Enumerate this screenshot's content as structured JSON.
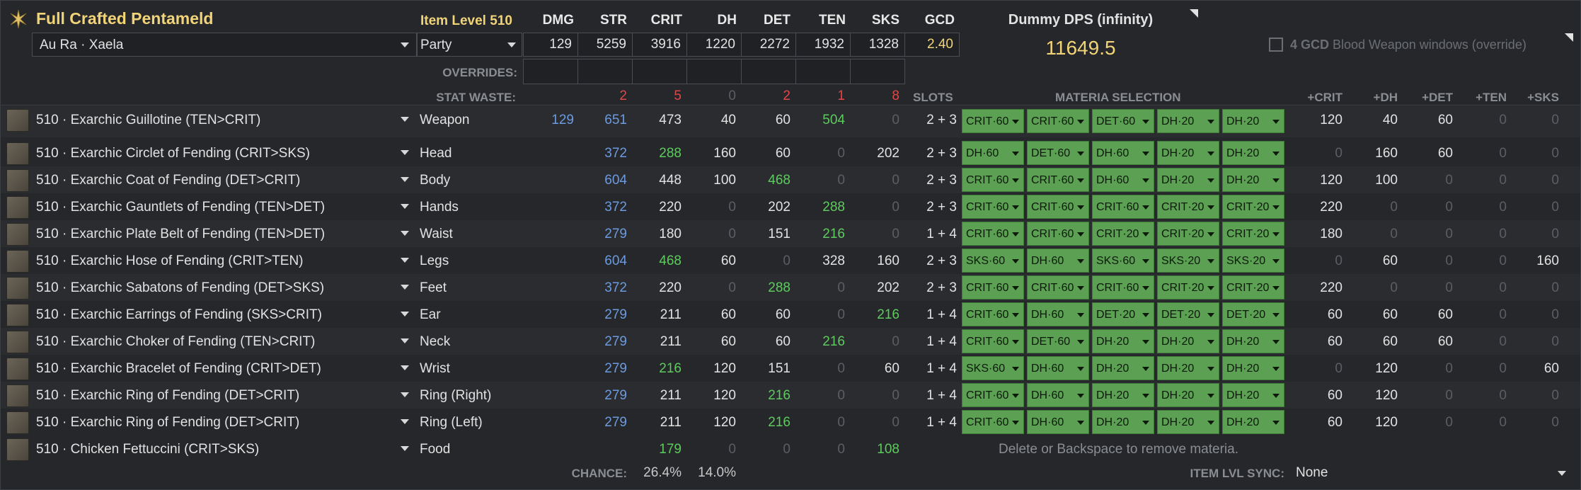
{
  "title": "Full Crafted Pentameld",
  "item_level": "Item Level 510",
  "race": "Au Ra · Xaela",
  "party": "Party",
  "stat_headers": [
    "DMG",
    "STR",
    "CRIT",
    "DH",
    "DET",
    "TEN",
    "SKS",
    "GCD"
  ],
  "stat_values": [
    "129",
    "5259",
    "3916",
    "1220",
    "2272",
    "1932",
    "1328",
    "2.40"
  ],
  "overrides_label": "OVERRIDES:",
  "stat_waste_label": "STAT WASTE:",
  "stat_waste": [
    "2",
    "5",
    "0",
    "2",
    "1",
    "8"
  ],
  "slots_label": "SLOTS",
  "materia_selection_label": "MATERIA SELECTION",
  "bonus_headers": [
    "+CRIT",
    "+DH",
    "+DET",
    "+TEN",
    "+SKS"
  ],
  "dps_title": "Dummy DPS (infinity)",
  "dps_value": "11649.5",
  "gcd_windows_bold": "4 GCD",
  "gcd_windows_rest": " Blood Weapon windows (override)",
  "gear": [
    {
      "name": "510 · Exarchic Guillotine (TEN>CRIT)",
      "slot": "Weapon",
      "dmg": "129",
      "str": "651",
      "crit": "473",
      "dh": "40",
      "det": "60",
      "ten": "504",
      "sks": "0",
      "slots": "2 + 3",
      "materia": [
        "CRIT·60",
        "CRIT·60",
        "DET·60",
        "DH·20",
        "DH·20"
      ],
      "bonus": [
        "120",
        "40",
        "60",
        "0",
        "0"
      ]
    },
    {
      "name": "510 · Exarchic Circlet of Fending (CRIT>SKS)",
      "slot": "Head",
      "dmg": "",
      "str": "372",
      "crit": "288",
      "dh": "160",
      "det": "60",
      "ten": "0",
      "sks": "202",
      "slots": "2 + 3",
      "materia": [
        "DH·60",
        "DET·60",
        "DH·60",
        "DH·20",
        "DH·20"
      ],
      "bonus": [
        "0",
        "160",
        "60",
        "0",
        "0"
      ]
    },
    {
      "name": "510 · Exarchic Coat of Fending (DET>CRIT)",
      "slot": "Body",
      "dmg": "",
      "str": "604",
      "crit": "448",
      "dh": "100",
      "det": "468",
      "ten": "0",
      "sks": "0",
      "slots": "2 + 3",
      "materia": [
        "CRIT·60",
        "CRIT·60",
        "DH·60",
        "DH·20",
        "DH·20"
      ],
      "bonus": [
        "120",
        "100",
        "0",
        "0",
        "0"
      ]
    },
    {
      "name": "510 · Exarchic Gauntlets of Fending (TEN>DET)",
      "slot": "Hands",
      "dmg": "",
      "str": "372",
      "crit": "220",
      "dh": "0",
      "det": "202",
      "ten": "288",
      "sks": "0",
      "slots": "2 + 3",
      "materia": [
        "CRIT·60",
        "CRIT·60",
        "CRIT·60",
        "CRIT·20",
        "CRIT·20"
      ],
      "bonus": [
        "220",
        "0",
        "0",
        "0",
        "0"
      ]
    },
    {
      "name": "510 · Exarchic Plate Belt of Fending (TEN>DET)",
      "slot": "Waist",
      "dmg": "",
      "str": "279",
      "crit": "180",
      "dh": "0",
      "det": "151",
      "ten": "216",
      "sks": "0",
      "slots": "1 + 4",
      "materia": [
        "CRIT·60",
        "CRIT·60",
        "CRIT·20",
        "CRIT·20",
        "CRIT·20"
      ],
      "bonus": [
        "180",
        "0",
        "0",
        "0",
        "0"
      ]
    },
    {
      "name": "510 · Exarchic Hose of Fending (CRIT>TEN)",
      "slot": "Legs",
      "dmg": "",
      "str": "604",
      "crit": "468",
      "dh": "60",
      "det": "0",
      "ten": "328",
      "sks": "160",
      "slots": "2 + 3",
      "materia": [
        "SKS·60",
        "DH·60",
        "SKS·60",
        "SKS·20",
        "SKS·20"
      ],
      "bonus": [
        "0",
        "60",
        "0",
        "0",
        "160"
      ]
    },
    {
      "name": "510 · Exarchic Sabatons of Fending (DET>SKS)",
      "slot": "Feet",
      "dmg": "",
      "str": "372",
      "crit": "220",
      "dh": "0",
      "det": "288",
      "ten": "0",
      "sks": "202",
      "slots": "2 + 3",
      "materia": [
        "CRIT·60",
        "CRIT·60",
        "CRIT·60",
        "CRIT·20",
        "CRIT·20"
      ],
      "bonus": [
        "220",
        "0",
        "0",
        "0",
        "0"
      ]
    },
    {
      "name": "510 · Exarchic Earrings of Fending (SKS>CRIT)",
      "slot": "Ear",
      "dmg": "",
      "str": "279",
      "crit": "211",
      "dh": "60",
      "det": "60",
      "ten": "0",
      "sks": "216",
      "slots": "1 + 4",
      "materia": [
        "CRIT·60",
        "DH·60",
        "DET·20",
        "DET·20",
        "DET·20"
      ],
      "bonus": [
        "60",
        "60",
        "60",
        "0",
        "0"
      ]
    },
    {
      "name": "510 · Exarchic Choker of Fending (TEN>CRIT)",
      "slot": "Neck",
      "dmg": "",
      "str": "279",
      "crit": "211",
      "dh": "60",
      "det": "60",
      "ten": "216",
      "sks": "0",
      "slots": "1 + 4",
      "materia": [
        "CRIT·60",
        "DET·60",
        "DH·20",
        "DH·20",
        "DH·20"
      ],
      "bonus": [
        "60",
        "60",
        "60",
        "0",
        "0"
      ]
    },
    {
      "name": "510 · Exarchic Bracelet of Fending (CRIT>DET)",
      "slot": "Wrist",
      "dmg": "",
      "str": "279",
      "crit": "216",
      "dh": "120",
      "det": "151",
      "ten": "0",
      "sks": "60",
      "slots": "1 + 4",
      "materia": [
        "SKS·60",
        "DH·60",
        "DH·20",
        "DH·20",
        "DH·20"
      ],
      "bonus": [
        "0",
        "120",
        "0",
        "0",
        "60"
      ]
    },
    {
      "name": "510 · Exarchic Ring of Fending (DET>CRIT)",
      "slot": "Ring (Right)",
      "dmg": "",
      "str": "279",
      "crit": "211",
      "dh": "120",
      "det": "216",
      "ten": "0",
      "sks": "0",
      "slots": "1 + 4",
      "materia": [
        "CRIT·60",
        "DH·60",
        "DH·20",
        "DH·20",
        "DH·20"
      ],
      "bonus": [
        "60",
        "120",
        "0",
        "0",
        "0"
      ]
    },
    {
      "name": "510 · Exarchic Ring of Fending (DET>CRIT)",
      "slot": "Ring (Left)",
      "dmg": "",
      "str": "279",
      "crit": "211",
      "dh": "120",
      "det": "216",
      "ten": "0",
      "sks": "0",
      "slots": "1 + 4",
      "materia": [
        "CRIT·60",
        "DH·60",
        "DH·20",
        "DH·20",
        "DH·20"
      ],
      "bonus": [
        "60",
        "120",
        "0",
        "0",
        "0"
      ]
    }
  ],
  "food": {
    "name": "510 · Chicken Fettuccini (CRIT>SKS)",
    "slot": "Food",
    "crit": "179",
    "dh": "0",
    "det": "0",
    "ten": "0",
    "sks": "108",
    "hint": "Delete or Backspace to remove materia."
  },
  "chance_label": "CHANCE:",
  "chance_crit": "26.4%",
  "chance_dh": "14.0%",
  "sync_label": "ITEM LVL SYNC:",
  "sync_value": "None",
  "colors": {
    "materia": "#5ba053",
    "title": "#f2d478",
    "blue": "#6c9be0",
    "green": "#5ecb5e",
    "red": "#e04848",
    "muted": "#5b5e63"
  }
}
